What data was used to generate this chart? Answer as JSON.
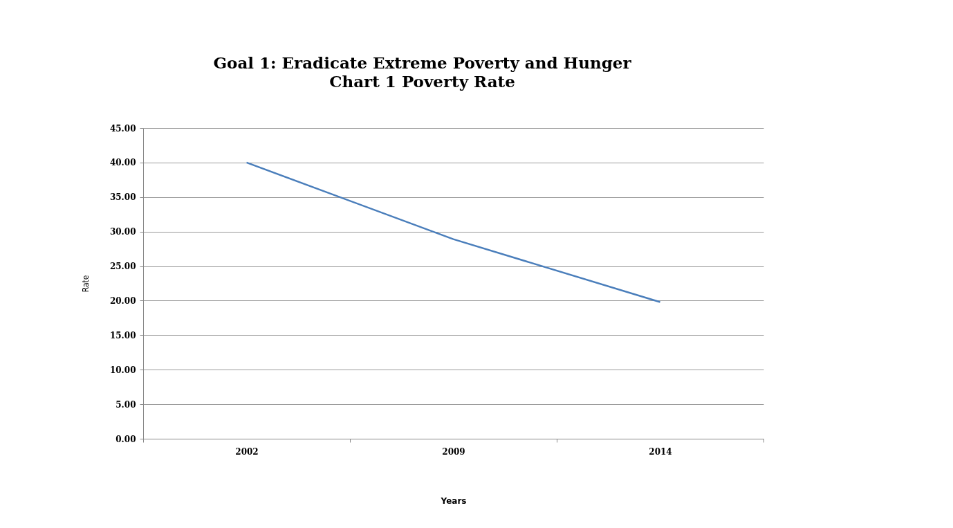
{
  "chart_data": {
    "type": "line",
    "title": "Goal 1: Eradicate Extreme Poverty and Hunger",
    "subtitle": "Chart 1  Poverty Rate",
    "xlabel": "Years",
    "ylabel": "Rate",
    "categories": [
      "2002",
      "2009",
      "2014"
    ],
    "series": [
      {
        "color": "#4a7ebb",
        "values": [
          40.0,
          28.9,
          19.8
        ]
      }
    ],
    "ylim": [
      0,
      45
    ],
    "yticks": [
      {
        "value": 0,
        "label": "0.00"
      },
      {
        "value": 5,
        "label": "5.00"
      },
      {
        "value": 10,
        "label": "10.00"
      },
      {
        "value": 15,
        "label": "15.00"
      },
      {
        "value": 20,
        "label": "20.00"
      },
      {
        "value": 25,
        "label": "25.00"
      },
      {
        "value": 30,
        "label": "30.00"
      },
      {
        "value": 35,
        "label": "35.00"
      },
      {
        "value": 40,
        "label": "40.00"
      },
      {
        "value": 45,
        "label": "45.00"
      }
    ],
    "grid": "y",
    "line_style": "solid"
  }
}
